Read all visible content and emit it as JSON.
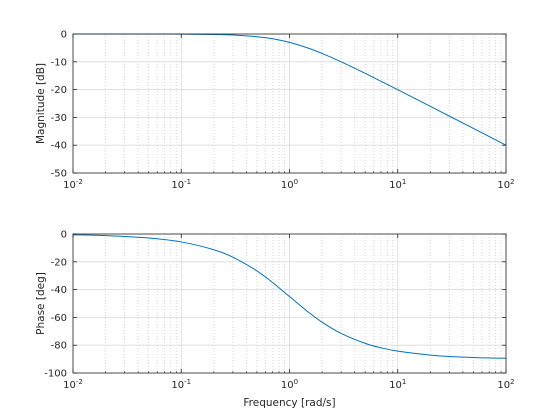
{
  "chart_data": [
    {
      "type": "line",
      "xscale": "log",
      "xlim": [
        0.01,
        100
      ],
      "ylim": [
        -50,
        0
      ],
      "yticks": [
        0,
        -10,
        -20,
        -30,
        -40,
        -50
      ],
      "xticks": [
        {
          "base": "10",
          "exp": "-2"
        },
        {
          "base": "10",
          "exp": "-1"
        },
        {
          "base": "10",
          "exp": "0"
        },
        {
          "base": "10",
          "exp": "1"
        },
        {
          "base": "10",
          "exp": "2"
        }
      ],
      "xlabel": "",
      "ylabel": "Magnitude [dB]",
      "grid": true,
      "minor_grid": true,
      "line_color": "#0072bd",
      "series": [
        {
          "x": [
            0.01,
            0.02,
            0.05,
            0.1,
            0.2,
            0.3,
            0.5,
            0.7,
            1,
            1.5,
            2,
            3,
            5,
            7,
            10,
            20,
            30,
            50,
            70,
            100
          ],
          "y": [
            0,
            0,
            0,
            -0.04,
            -0.17,
            -0.37,
            -0.97,
            -1.71,
            -3.01,
            -5.12,
            -6.99,
            -10.0,
            -14.15,
            -17.0,
            -20.04,
            -26.02,
            -29.54,
            -33.98,
            -36.9,
            -40.0
          ]
        }
      ]
    },
    {
      "type": "line",
      "xscale": "log",
      "xlim": [
        0.01,
        100
      ],
      "ylim": [
        -100,
        0
      ],
      "yticks": [
        0,
        -20,
        -40,
        -60,
        -80,
        -100
      ],
      "xticks": [
        {
          "base": "10",
          "exp": "-2"
        },
        {
          "base": "10",
          "exp": "-1"
        },
        {
          "base": "10",
          "exp": "0"
        },
        {
          "base": "10",
          "exp": "1"
        },
        {
          "base": "10",
          "exp": "2"
        }
      ],
      "xlabel": "Frequency [rad/s]",
      "ylabel": "Phase [deg]",
      "grid": true,
      "minor_grid": true,
      "line_color": "#0072bd",
      "series": [
        {
          "x": [
            0.01,
            0.02,
            0.05,
            0.1,
            0.2,
            0.3,
            0.5,
            0.7,
            1,
            1.5,
            2,
            3,
            5,
            7,
            10,
            20,
            30,
            50,
            70,
            100
          ],
          "y": [
            -0.57,
            -1.15,
            -2.86,
            -5.71,
            -11.31,
            -16.7,
            -26.57,
            -34.99,
            -45.0,
            -56.31,
            -63.43,
            -71.57,
            -78.69,
            -81.87,
            -84.29,
            -87.14,
            -88.09,
            -88.85,
            -89.18,
            -89.43
          ]
        }
      ]
    }
  ]
}
